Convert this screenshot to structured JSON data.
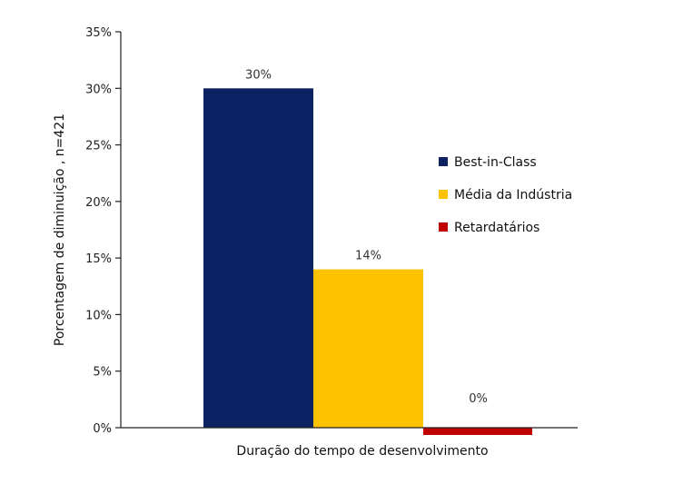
{
  "chart_data": {
    "type": "bar",
    "title": "",
    "xlabel": "Duração do tempo de desenvolvimento",
    "ylabel": "Porcentagem de diminuição   , n=421",
    "ylim": [
      0,
      35
    ],
    "yticks": [
      "0%",
      "5%",
      "10%",
      "15%",
      "20%",
      "25%",
      "30%",
      "35%"
    ],
    "ytick_values": [
      0,
      5,
      10,
      15,
      20,
      25,
      30,
      35
    ],
    "categories": [
      "Duração do tempo de desenvolvimento"
    ],
    "series": [
      {
        "name": "Best-in-Class",
        "values": [
          30
        ],
        "label": "30%",
        "color": "#0b2263"
      },
      {
        "name": "Média da Indústria",
        "values": [
          14
        ],
        "label": "14%",
        "color": "#fdc200"
      },
      {
        "name": "Retardatários",
        "values": [
          0
        ],
        "label": "0%",
        "color": "#c00000"
      }
    ],
    "grid": false,
    "legend_position": "right"
  }
}
